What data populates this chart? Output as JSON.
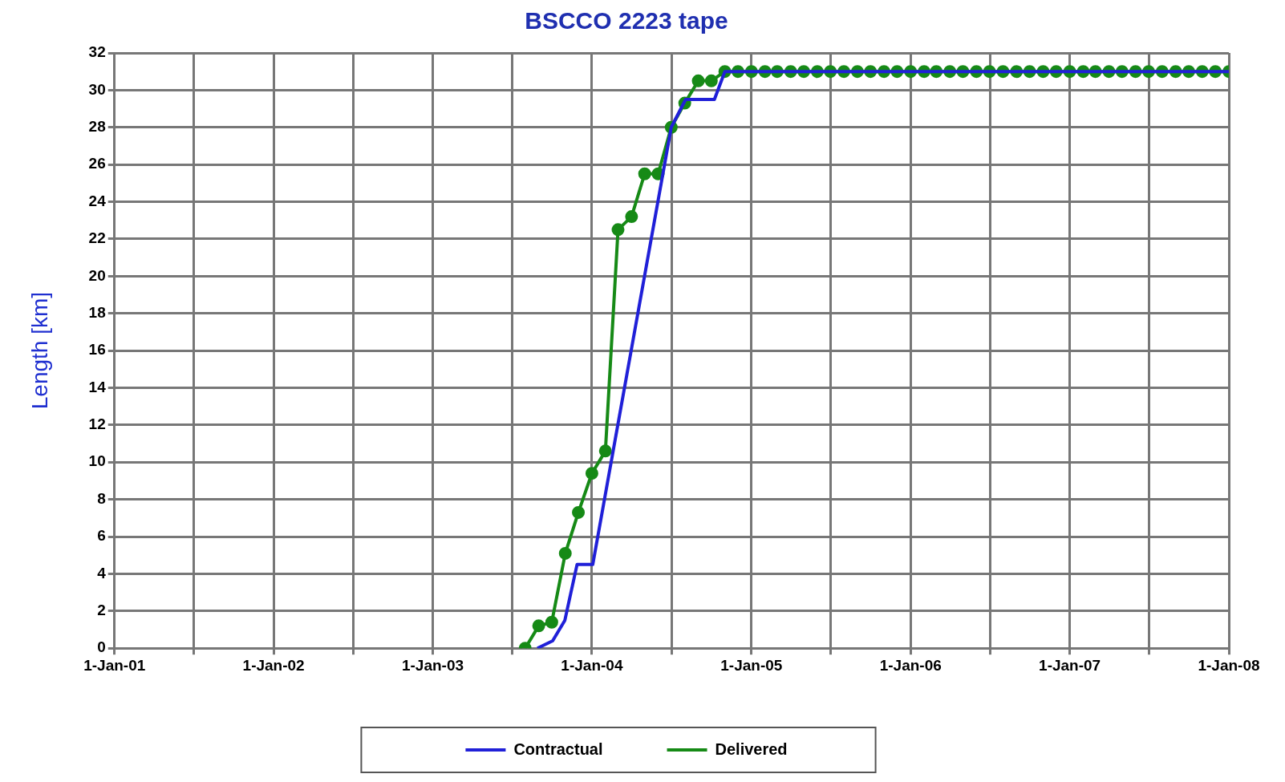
{
  "chart_data": {
    "type": "line",
    "title": "BSCCO 2223 tape",
    "ylabel": "Length [km]",
    "xlim": [
      "2001-01-01",
      "2008-01-01"
    ],
    "xticks": [
      {
        "value": "2001-01-01",
        "label": "1-Jan-01"
      },
      {
        "value": "2001-07-02",
        "label": null
      },
      {
        "value": "2002-01-01",
        "label": "1-Jan-02"
      },
      {
        "value": "2002-07-02",
        "label": null
      },
      {
        "value": "2003-01-01",
        "label": "1-Jan-03"
      },
      {
        "value": "2003-07-02",
        "label": null
      },
      {
        "value": "2004-01-01",
        "label": "1-Jan-04"
      },
      {
        "value": "2004-07-02",
        "label": null
      },
      {
        "value": "2005-01-01",
        "label": "1-Jan-05"
      },
      {
        "value": "2005-07-02",
        "label": null
      },
      {
        "value": "2006-01-01",
        "label": "1-Jan-06"
      },
      {
        "value": "2006-07-02",
        "label": null
      },
      {
        "value": "2007-01-01",
        "label": "1-Jan-07"
      },
      {
        "value": "2007-07-02",
        "label": null
      },
      {
        "value": "2008-01-01",
        "label": "1-Jan-08"
      }
    ],
    "ylim": [
      0,
      32
    ],
    "yticks": [
      0,
      2,
      4,
      6,
      8,
      10,
      12,
      14,
      16,
      18,
      20,
      22,
      24,
      26,
      28,
      30,
      32
    ],
    "grid": true,
    "legend": "bottom",
    "series": [
      {
        "name": "Contractual",
        "color": "#2020d8",
        "marker": "none",
        "x": [
          "2003-08-29",
          "2003-10-03",
          "2003-10-31",
          "2003-11-28",
          "2004-01-03",
          "2004-07-01",
          "2004-08-03",
          "2004-10-08",
          "2004-11-01",
          "2008-01-01"
        ],
        "values": [
          0,
          0.4,
          1.5,
          4.5,
          4.5,
          28,
          29.5,
          29.5,
          31,
          31
        ]
      },
      {
        "name": "Delivered",
        "color": "#168a16",
        "marker": "circle",
        "x": [
          "2003-08-01",
          "2003-09-01",
          "2003-10-01",
          "2003-11-01",
          "2003-12-01",
          "2004-01-01",
          "2004-02-01",
          "2004-03-01",
          "2004-04-01",
          "2004-05-01",
          "2004-06-01",
          "2004-07-01",
          "2004-08-01",
          "2004-09-01",
          "2004-10-01",
          "2004-11-01",
          "2004-12-01",
          "2005-01-01",
          "2005-02-01",
          "2005-03-01",
          "2005-04-01",
          "2005-05-01",
          "2005-06-01",
          "2005-07-01",
          "2005-08-01",
          "2005-09-01",
          "2005-10-01",
          "2005-11-01",
          "2005-12-01",
          "2006-01-01",
          "2006-02-01",
          "2006-03-01",
          "2006-04-01",
          "2006-05-01",
          "2006-06-01",
          "2006-07-01",
          "2006-08-01",
          "2006-09-01",
          "2006-10-01",
          "2006-11-01",
          "2006-12-01",
          "2007-01-01",
          "2007-02-01",
          "2007-03-01",
          "2007-04-01",
          "2007-05-01",
          "2007-06-01",
          "2007-07-01",
          "2007-08-01",
          "2007-09-01",
          "2007-10-01",
          "2007-11-01",
          "2007-12-01",
          "2008-01-01"
        ],
        "values": [
          0,
          1.2,
          1.4,
          5.1,
          7.3,
          9.4,
          10.6,
          22.5,
          23.2,
          25.5,
          25.5,
          28,
          29.3,
          30.5,
          30.5,
          31,
          31,
          31,
          31,
          31,
          31,
          31,
          31,
          31,
          31,
          31,
          31,
          31,
          31,
          31,
          31,
          31,
          31,
          31,
          31,
          31,
          31,
          31,
          31,
          31,
          31,
          31,
          31,
          31,
          31,
          31,
          31,
          31,
          31,
          31,
          31,
          31,
          31,
          31
        ]
      }
    ]
  }
}
